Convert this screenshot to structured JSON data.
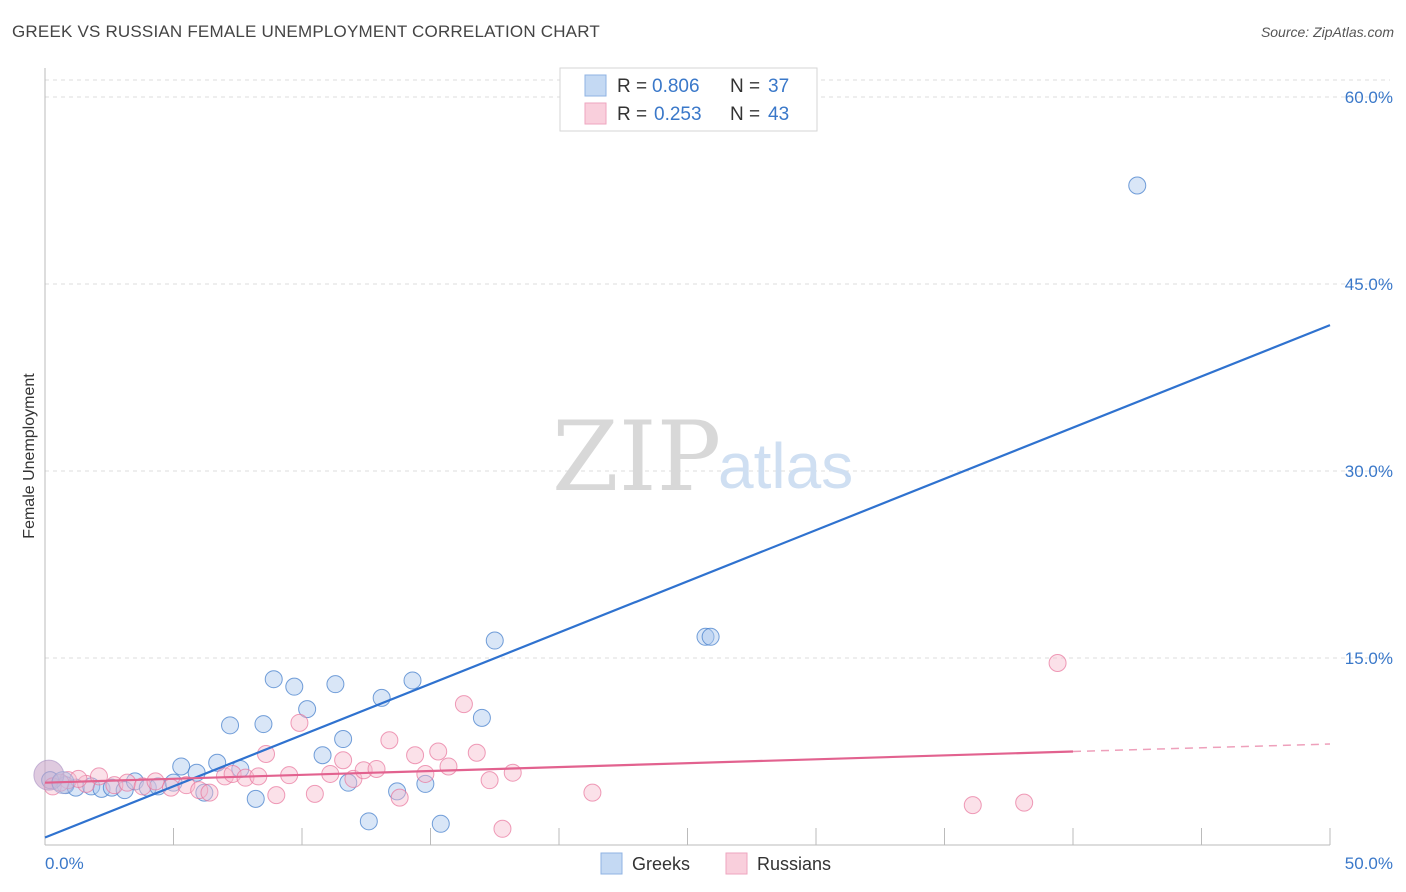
{
  "title": "GREEK VS RUSSIAN FEMALE UNEMPLOYMENT CORRELATION CHART",
  "source": "Source: ZipAtlas.com",
  "watermark": {
    "zip": "ZIP",
    "atlas": "atlas"
  },
  "chart_data": {
    "type": "scatter",
    "xlabel": "",
    "ylabel": "Female Unemployment",
    "xlim": [
      0,
      50
    ],
    "ylim": [
      0,
      60
    ],
    "x_tick_labels": {
      "min": "0.0%",
      "max": "50.0%"
    },
    "y_ticks": [
      {
        "value": 15,
        "label": "15.0%"
      },
      {
        "value": 30,
        "label": "30.0%"
      },
      {
        "value": 45,
        "label": "45.0%"
      },
      {
        "value": 60,
        "label": "60.0%"
      }
    ],
    "legend": [
      {
        "r_label": "R =",
        "r_value": "0.806",
        "n_label": "N =",
        "n_value": "37"
      },
      {
        "r_label": "R =",
        "r_value": "0.253",
        "n_label": "N =",
        "n_value": "43"
      }
    ],
    "series": [
      {
        "name": "Greeks",
        "color": "#3a78c9",
        "fill": "#aac8ee",
        "trend": {
          "x0": 0.0,
          "y0": 0.6,
          "x1": 50.0,
          "y1": 41.7
        },
        "points": [
          [
            0.2,
            5.2
          ],
          [
            0.8,
            4.8
          ],
          [
            1.2,
            4.6
          ],
          [
            1.8,
            4.7
          ],
          [
            2.2,
            4.5
          ],
          [
            2.6,
            4.6
          ],
          [
            3.1,
            4.4
          ],
          [
            3.5,
            5.1
          ],
          [
            4.0,
            4.6
          ],
          [
            4.4,
            4.7
          ],
          [
            5.0,
            5.0
          ],
          [
            5.3,
            6.3
          ],
          [
            5.9,
            5.8
          ],
          [
            6.2,
            4.2
          ],
          [
            6.7,
            6.6
          ],
          [
            7.2,
            9.6
          ],
          [
            7.6,
            6.1
          ],
          [
            8.2,
            3.7
          ],
          [
            8.5,
            9.7
          ],
          [
            8.9,
            13.3
          ],
          [
            9.7,
            12.7
          ],
          [
            10.2,
            10.9
          ],
          [
            10.8,
            7.2
          ],
          [
            11.3,
            12.9
          ],
          [
            11.6,
            8.5
          ],
          [
            11.8,
            5.0
          ],
          [
            12.6,
            1.9
          ],
          [
            13.1,
            11.8
          ],
          [
            13.7,
            4.3
          ],
          [
            14.3,
            13.2
          ],
          [
            14.8,
            4.9
          ],
          [
            15.4,
            1.7
          ],
          [
            17.0,
            10.2
          ],
          [
            17.5,
            16.4
          ],
          [
            25.7,
            16.7
          ],
          [
            25.9,
            16.7
          ],
          [
            42.5,
            52.9
          ]
        ]
      },
      {
        "name": "Russians",
        "color": "#e8739b",
        "fill": "#f7bccf",
        "trend": {
          "x0": 0.0,
          "y0": 5.0,
          "x1": 40.0,
          "y1": 7.5,
          "dash_x1": 50.0,
          "dash_y1": 8.1
        },
        "points": [
          [
            0.3,
            4.7
          ],
          [
            0.9,
            5.2
          ],
          [
            1.6,
            4.9
          ],
          [
            2.1,
            5.5
          ],
          [
            2.7,
            4.8
          ],
          [
            3.2,
            5.0
          ],
          [
            3.8,
            4.7
          ],
          [
            4.3,
            5.1
          ],
          [
            4.9,
            4.6
          ],
          [
            5.5,
            4.8
          ],
          [
            6.0,
            4.4
          ],
          [
            6.4,
            4.2
          ],
          [
            7.0,
            5.5
          ],
          [
            7.3,
            5.7
          ],
          [
            7.8,
            5.4
          ],
          [
            8.3,
            5.5
          ],
          [
            8.6,
            7.3
          ],
          [
            9.0,
            4.0
          ],
          [
            9.5,
            5.6
          ],
          [
            9.9,
            9.8
          ],
          [
            10.5,
            4.1
          ],
          [
            11.1,
            5.7
          ],
          [
            11.6,
            6.8
          ],
          [
            12.0,
            5.3
          ],
          [
            12.4,
            6.0
          ],
          [
            12.9,
            6.1
          ],
          [
            13.4,
            8.4
          ],
          [
            13.8,
            3.8
          ],
          [
            14.4,
            7.2
          ],
          [
            14.8,
            5.7
          ],
          [
            15.3,
            7.5
          ],
          [
            15.7,
            6.3
          ],
          [
            16.3,
            11.3
          ],
          [
            16.8,
            7.4
          ],
          [
            17.3,
            5.2
          ],
          [
            17.8,
            1.3
          ],
          [
            18.2,
            5.8
          ],
          [
            21.3,
            4.2
          ],
          [
            36.1,
            3.2
          ],
          [
            38.1,
            3.4
          ],
          [
            39.4,
            14.6
          ],
          [
            0.6,
            5.0
          ],
          [
            1.3,
            5.3
          ]
        ]
      }
    ]
  }
}
